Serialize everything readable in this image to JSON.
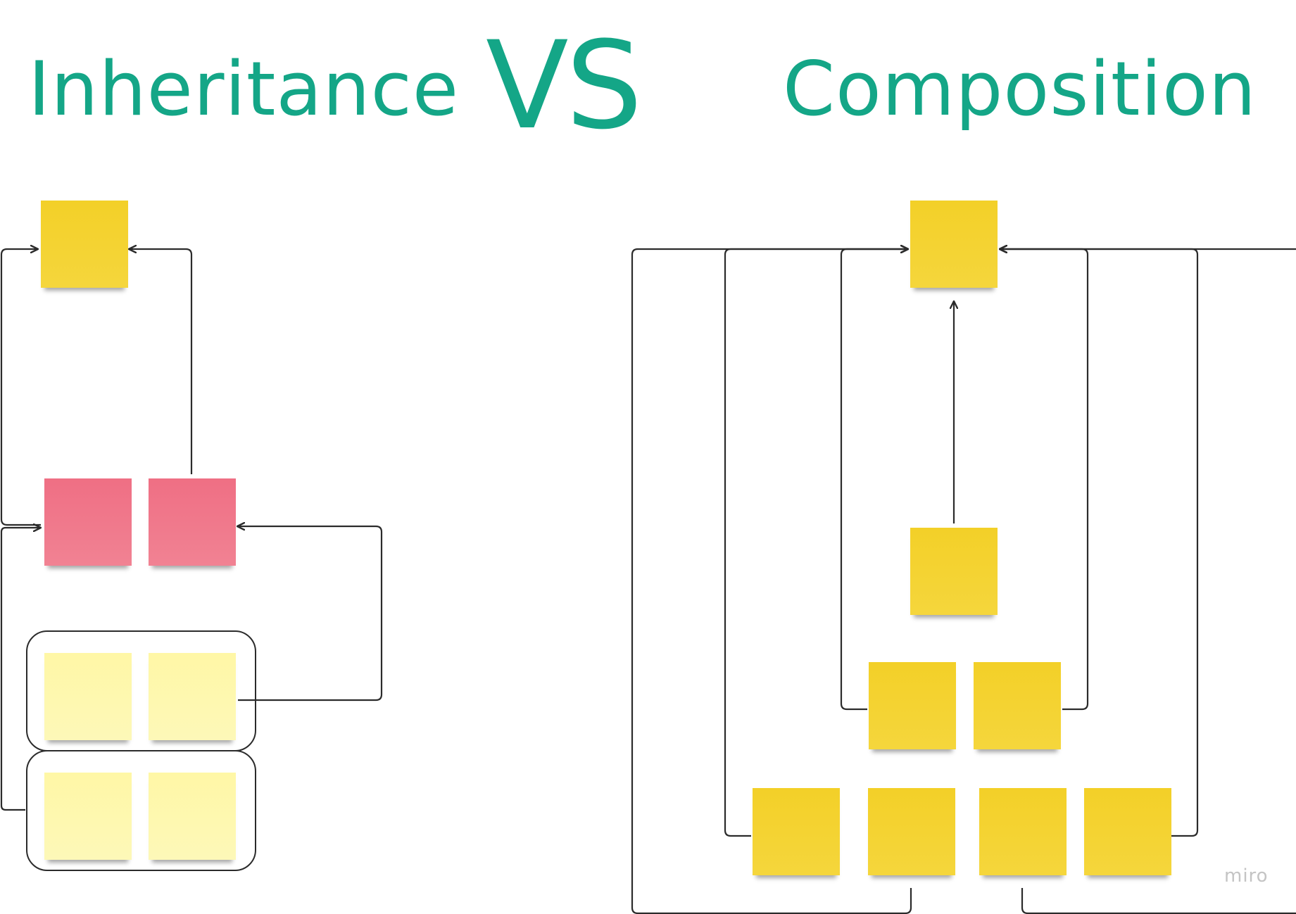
{
  "header": {
    "left_title": "Inheritance",
    "vs_label": "VS",
    "right_title": "Composition"
  },
  "watermark": "miro",
  "colors": {
    "title": "#14a687",
    "note_yellow": "#f3d028",
    "note_pink": "#ef6f84",
    "note_pale_yellow": "#fff7a6",
    "connector": "#2b2b2b"
  },
  "inheritance": {
    "notes": [
      {
        "id": "base",
        "color": "yellow"
      },
      {
        "id": "child-a",
        "color": "pink"
      },
      {
        "id": "child-b",
        "color": "pink"
      },
      {
        "id": "grandchild-1",
        "color": "pale"
      },
      {
        "id": "grandchild-2",
        "color": "pale"
      },
      {
        "id": "grandchild-3",
        "color": "pale"
      },
      {
        "id": "grandchild-4",
        "color": "pale"
      }
    ],
    "groups": [
      "group-top",
      "group-bottom"
    ],
    "links": [
      {
        "from": "child-a",
        "to": "base"
      },
      {
        "from": "child-b",
        "to": "base"
      },
      {
        "from": "group-top",
        "to": "child-b"
      },
      {
        "from": "group-bottom",
        "to": "child-a"
      }
    ]
  },
  "composition": {
    "notes": [
      {
        "id": "root",
        "color": "yellow"
      },
      {
        "id": "middle",
        "color": "yellow"
      },
      {
        "id": "row2-1",
        "color": "yellow"
      },
      {
        "id": "row2-2",
        "color": "yellow"
      },
      {
        "id": "row3-1",
        "color": "yellow"
      },
      {
        "id": "row3-2",
        "color": "yellow"
      },
      {
        "id": "row3-3",
        "color": "yellow"
      },
      {
        "id": "row3-4",
        "color": "yellow"
      }
    ],
    "links": [
      {
        "from": "middle",
        "to": "root"
      },
      {
        "from": "row2-1",
        "to": "root"
      },
      {
        "from": "row2-2",
        "to": "root"
      },
      {
        "from": "row3-1",
        "to": "root"
      },
      {
        "from": "row3-2",
        "to": "root"
      },
      {
        "from": "row3-3",
        "to": "root"
      },
      {
        "from": "row3-4",
        "to": "root"
      }
    ]
  }
}
